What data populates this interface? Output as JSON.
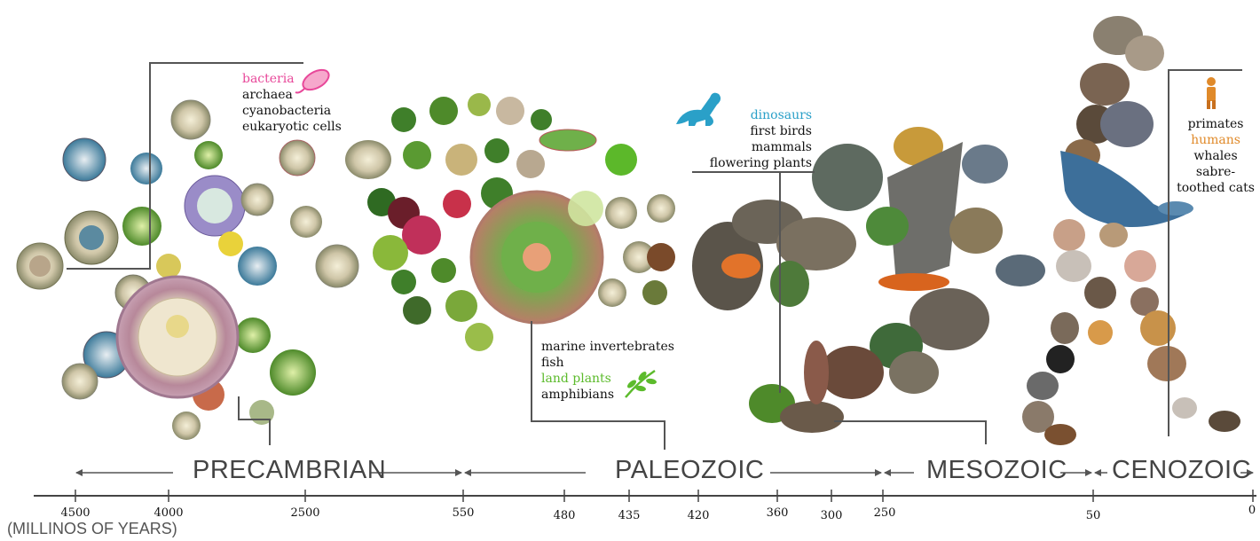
{
  "groups": {
    "precambrian": {
      "items": [
        "bacteria",
        "archaea",
        "cyanobacteria",
        "eukaryotic cells"
      ],
      "highlight": "bacteria",
      "highlight_color": "#e8489a"
    },
    "paleozoic": {
      "items": [
        "marine invertebrates",
        "fish",
        "land plants",
        "amphibians"
      ],
      "highlight": "land plants",
      "highlight_color": "#5cbb2c"
    },
    "mesozoic": {
      "items": [
        "dinosaurs",
        "first birds",
        "mammals",
        "flowering plants"
      ],
      "highlight": "dinosaurs",
      "highlight_color": "#2aa0c8"
    },
    "cenozoic": {
      "items": [
        "primates",
        "humans",
        "whales",
        "sabre-toothed cats"
      ],
      "highlight": "humans",
      "highlight_color": "#e08a2a"
    }
  },
  "eras": {
    "precambrian": "PRECAMBRIAN",
    "paleozoic": "PALEOZOIC",
    "mesozoic": "MESOZOIC",
    "cenozoic": "CENOZOIC"
  },
  "axis": {
    "unit_label": "(MILLINOS OF YEARS)",
    "ticks": [
      "4500",
      "4000",
      "2500",
      "550",
      "480",
      "435",
      "420",
      "360",
      "300",
      "250",
      "50",
      "0"
    ]
  },
  "colors": {
    "precambrian_cluster": "#8fae4a",
    "paleozoic_cluster": "#3f7f2a",
    "mesozoic_cluster": "#6b6458",
    "cenozoic_cluster": "#7a6452",
    "axis": "#444444"
  }
}
